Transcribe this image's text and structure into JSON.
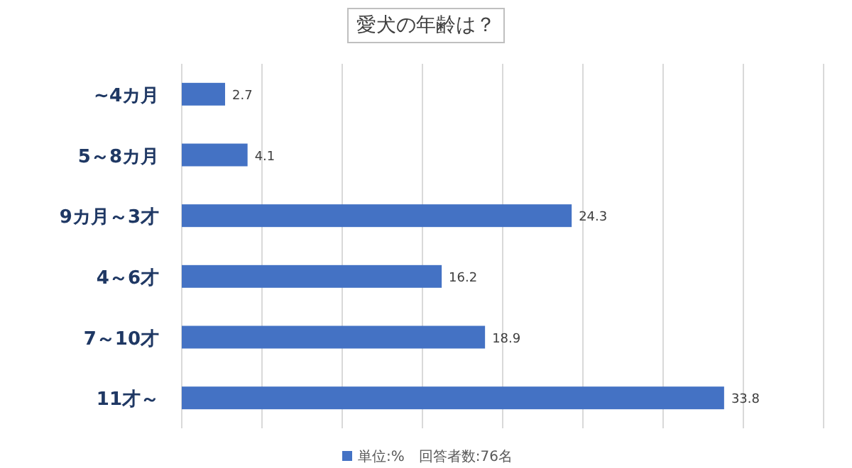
{
  "chart_data": {
    "type": "bar",
    "orientation": "horizontal",
    "title": "愛犬の年齢は？",
    "categories": [
      "~4カ月",
      "5～8カ月",
      "9カ月～3才",
      "4～6才",
      "7～10才",
      "11才～"
    ],
    "series": [
      {
        "name": "単位:%　回答者数:76名",
        "color": "#4472c4",
        "values": [
          2.7,
          4.1,
          24.3,
          16.2,
          18.9,
          33.8
        ]
      }
    ],
    "data_labels": true,
    "xlim": [
      0,
      40
    ],
    "xticks": [
      {
        "value": 0,
        "label": null
      },
      {
        "value": 5,
        "label": null
      },
      {
        "value": 10,
        "label": null
      },
      {
        "value": 15,
        "label": null
      },
      {
        "value": 20,
        "label": null
      },
      {
        "value": 25,
        "label": null
      },
      {
        "value": 30,
        "label": null
      },
      {
        "value": 35,
        "label": null
      },
      {
        "value": 40,
        "label": null
      }
    ],
    "grid": "x",
    "legend": "bottom",
    "tick_labels": "y"
  }
}
